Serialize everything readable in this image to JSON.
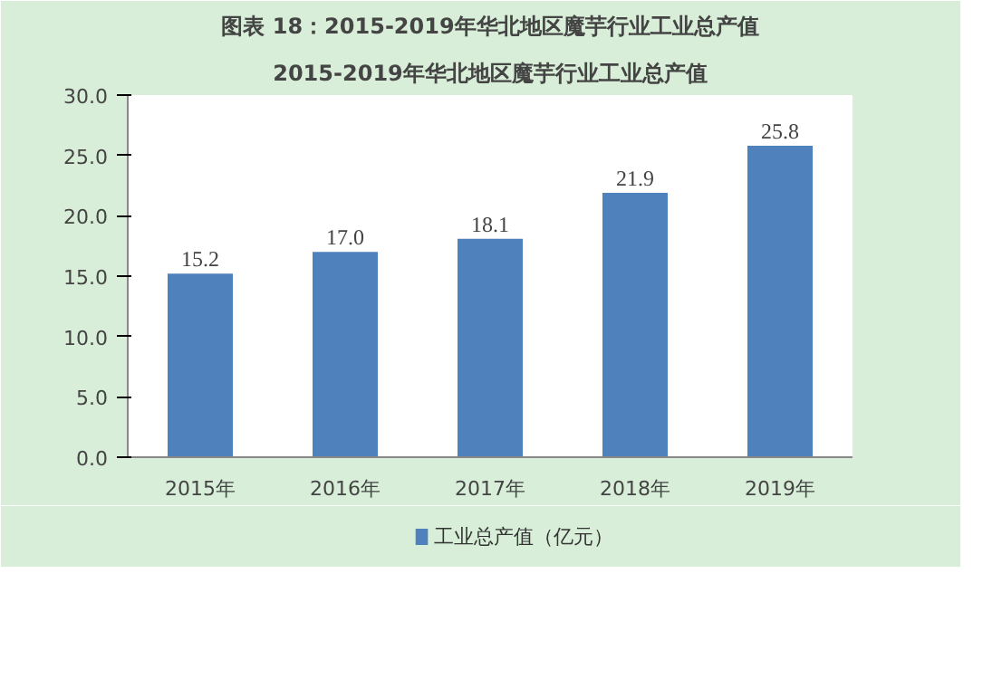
{
  "chart_data": {
    "type": "bar",
    "title": "2015-2019年华北地区魔芋行业工业总产值",
    "annotations": [
      "图表 18：2015-2019年华北地区魔芋行业工业总产值"
    ],
    "categories": [
      "2015年",
      "2016年",
      "2017年",
      "2018年",
      "2019年"
    ],
    "series": [
      {
        "name": "工业总产值（亿元）",
        "color": "#4f81bd",
        "values": [
          15.2,
          17.0,
          18.1,
          21.9,
          25.8
        ]
      }
    ],
    "value_labels": [
      "15.2",
      "17.0",
      "18.1",
      "21.9",
      "25.8"
    ],
    "ylim": [
      0,
      30
    ],
    "yticks": [
      {
        "value": 0,
        "label": "0.0"
      },
      {
        "value": 5,
        "label": "5.0"
      },
      {
        "value": 10,
        "label": "10.0"
      },
      {
        "value": 15,
        "label": "15.0"
      },
      {
        "value": 20,
        "label": "20.0"
      },
      {
        "value": 25,
        "label": "25.0"
      },
      {
        "value": 30,
        "label": "30.0"
      }
    ],
    "legend": "bottom"
  }
}
